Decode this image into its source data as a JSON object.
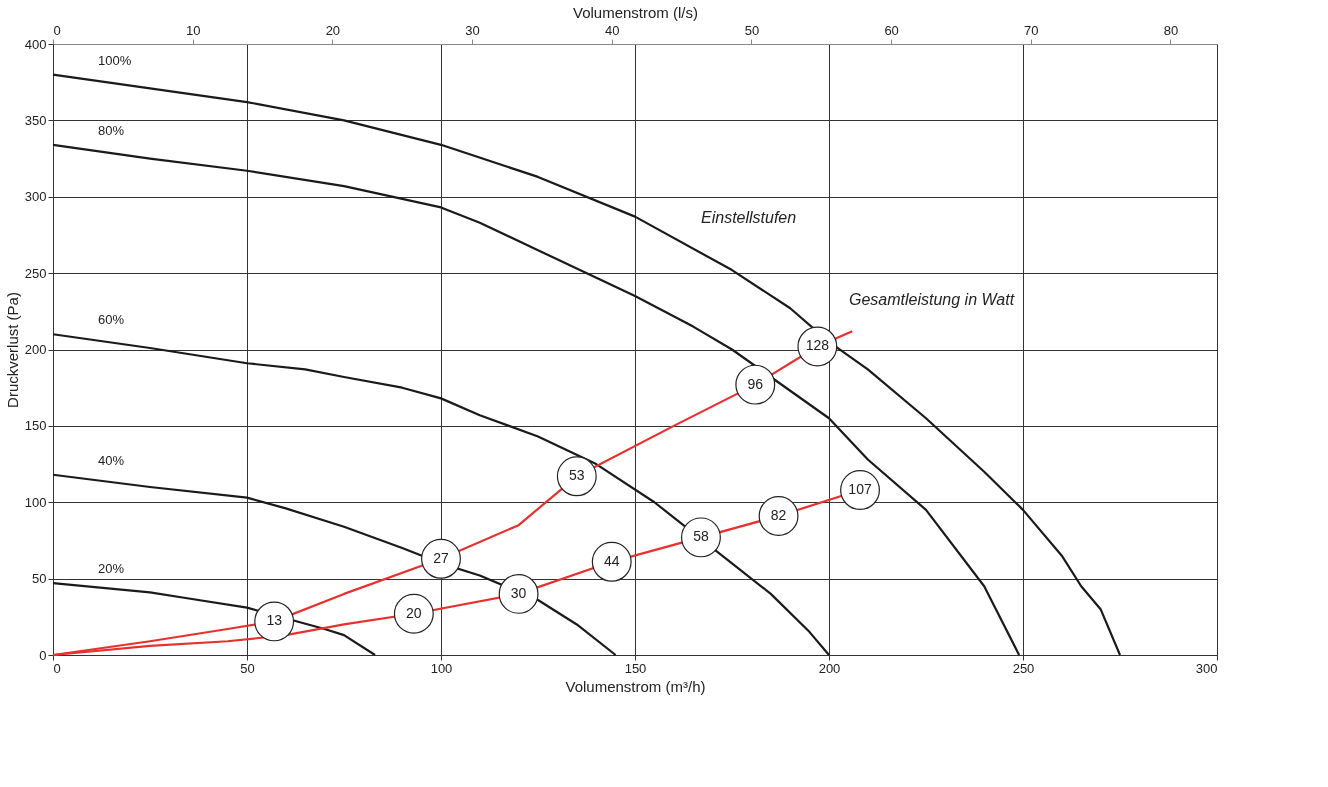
{
  "chart_data": {
    "type": "line",
    "xlabel": "Volumenstrom (m³/h)",
    "ylabel": "Druckverlust (Pa)",
    "x2label": "Volumenstrom (l/s)",
    "xlim": [
      0,
      300
    ],
    "xticks": [
      0,
      50,
      100,
      150,
      200,
      250,
      300
    ],
    "ylim": [
      0,
      400
    ],
    "yticks": [
      0,
      50,
      100,
      150,
      200,
      250,
      300,
      350,
      400
    ],
    "x2lim": [
      0,
      83.33
    ],
    "x2ticks": [
      0,
      10,
      20,
      30,
      40,
      50,
      60,
      70,
      80
    ],
    "grid": true,
    "legend": false,
    "line_style": "solid",
    "series": [
      {
        "name": "100%",
        "color": "#1a1a1a",
        "x": [
          0,
          25,
          50,
          75,
          100,
          125,
          150,
          175,
          190,
          200,
          210,
          225,
          240,
          250,
          260,
          265,
          270,
          275
        ],
        "values": [
          380,
          371,
          362,
          350,
          334,
          313,
          287,
          252,
          227,
          205,
          187,
          155,
          120,
          95,
          65,
          45,
          30,
          0
        ]
      },
      {
        "name": "80%",
        "color": "#1a1a1a",
        "x": [
          0,
          25,
          50,
          75,
          100,
          110,
          125,
          150,
          165,
          175,
          185,
          200,
          210,
          225,
          240,
          249
        ],
        "values": [
          334,
          325,
          317,
          307,
          293,
          283,
          265,
          235,
          215,
          200,
          182,
          155,
          128,
          95,
          45,
          0
        ]
      },
      {
        "name": "60%",
        "color": "#1a1a1a",
        "x": [
          0,
          25,
          50,
          65,
          75,
          90,
          100,
          110,
          125,
          140,
          155,
          165,
          175,
          185,
          195,
          200
        ],
        "values": [
          210,
          201,
          191,
          187,
          182,
          175,
          168,
          157,
          143,
          125,
          100,
          80,
          60,
          40,
          15,
          0
        ]
      },
      {
        "name": "40%",
        "color": "#1a1a1a",
        "x": [
          0,
          25,
          50,
          60,
          75,
          90,
          100,
          110,
          125,
          135,
          145
        ],
        "values": [
          118,
          110,
          103,
          96,
          84,
          70,
          60,
          52,
          36,
          20,
          0
        ]
      },
      {
        "name": "20%",
        "color": "#1a1a1a",
        "x": [
          0,
          25,
          35,
          50,
          70,
          75,
          83
        ],
        "values": [
          47,
          41,
          37,
          31,
          17,
          13,
          0
        ]
      },
      {
        "color": "#e8312f",
        "x": [
          0,
          25,
          45,
          57,
          75,
          100,
          120,
          135,
          160,
          181,
          197,
          206
        ],
        "values": [
          0,
          9,
          17,
          22,
          40,
          63,
          85,
          117,
          150,
          177,
          202,
          212
        ]
      },
      {
        "color": "#e8312f",
        "x": [
          0,
          25,
          45,
          60,
          75,
          93,
          120,
          144,
          167,
          187,
          208
        ],
        "values": [
          0,
          6,
          9,
          13,
          20,
          27,
          40,
          61,
          77,
          91,
          108
        ]
      }
    ],
    "annotations": [
      {
        "text": "13",
        "x": 57,
        "y": 22
      },
      {
        "text": "27",
        "x": 100,
        "y": 63
      },
      {
        "text": "53",
        "x": 135,
        "y": 117
      },
      {
        "text": "96",
        "x": 181,
        "y": 177
      },
      {
        "text": "128",
        "x": 197,
        "y": 202
      },
      {
        "text": "20",
        "x": 93,
        "y": 27
      },
      {
        "text": "30",
        "x": 120,
        "y": 40
      },
      {
        "text": "44",
        "x": 144,
        "y": 61
      },
      {
        "text": "58",
        "x": 167,
        "y": 77
      },
      {
        "text": "82",
        "x": 187,
        "y": 91
      },
      {
        "text": "107",
        "x": 208,
        "y": 108
      },
      "Einstellstufen",
      "Gesamtleistung in Watt"
    ]
  }
}
